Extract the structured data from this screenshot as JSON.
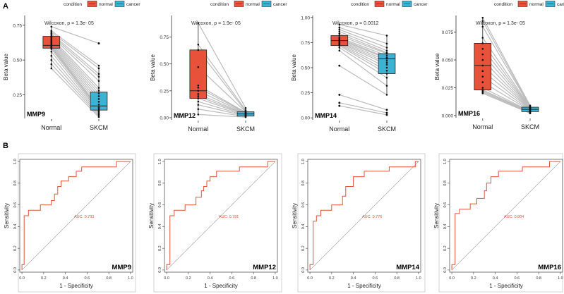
{
  "panel_labels": {
    "a": "A",
    "b": "B"
  },
  "colors": {
    "normal": "#e8513a",
    "cancer": "#3db3d4",
    "line": "#bcbcbc",
    "roc": "#e2553a",
    "diag": "#aaaaaa",
    "axis": "#333333"
  },
  "legend": {
    "title": "condition",
    "items": [
      "normal",
      "cancer"
    ]
  },
  "chart_data": [
    {
      "type": "box",
      "gene": "MMP9",
      "ylabel": "Beta value",
      "categories": [
        "Normal",
        "SKCM"
      ],
      "annotation": "Wilcoxon, p = 1.3e- 05",
      "ylim": [
        0.08,
        0.82
      ],
      "yticks": [
        0.25,
        0.5,
        0.75
      ],
      "tick_labels": [
        "0.25",
        "0.50",
        "0.75"
      ],
      "normal": {
        "q1": 0.585,
        "median": 0.605,
        "q3": 0.67,
        "whisker_low": 0.44,
        "whisker_high": 0.74
      },
      "cancer": {
        "q1": 0.14,
        "median": 0.17,
        "q3": 0.27,
        "whisker_low": 0.09,
        "whisker_high": 0.46,
        "outliers": [
          0.62
        ]
      },
      "pairs": [
        [
          0.74,
          0.62
        ],
        [
          0.71,
          0.46
        ],
        [
          0.7,
          0.44
        ],
        [
          0.69,
          0.4
        ],
        [
          0.68,
          0.38
        ],
        [
          0.67,
          0.35
        ],
        [
          0.66,
          0.3
        ],
        [
          0.65,
          0.28
        ],
        [
          0.64,
          0.26
        ],
        [
          0.63,
          0.24
        ],
        [
          0.62,
          0.22
        ],
        [
          0.61,
          0.2
        ],
        [
          0.6,
          0.18
        ],
        [
          0.595,
          0.16
        ],
        [
          0.59,
          0.15
        ],
        [
          0.58,
          0.14
        ],
        [
          0.56,
          0.13
        ],
        [
          0.53,
          0.12
        ],
        [
          0.5,
          0.11
        ],
        [
          0.47,
          0.1
        ],
        [
          0.44,
          0.09
        ]
      ]
    },
    {
      "type": "box",
      "gene": "MMP12",
      "ylabel": "Beta value",
      "categories": [
        "Normal",
        "SKCM"
      ],
      "annotation": "Wilcoxon, p = 1.9e- 05",
      "ylim": [
        -0.02,
        0.95
      ],
      "yticks": [
        0.0,
        0.25,
        0.5,
        0.75
      ],
      "tick_labels": [
        "0.00",
        "0.25",
        "0.50",
        "0.75"
      ],
      "normal": {
        "q1": 0.18,
        "median": 0.25,
        "q3": 0.63,
        "whisker_low": 0.03,
        "whisker_high": 0.88
      },
      "cancer": {
        "q1": 0.015,
        "median": 0.035,
        "q3": 0.055,
        "whisker_low": 0.005,
        "whisker_high": 0.09
      },
      "pairs": [
        [
          0.88,
          0.09
        ],
        [
          0.68,
          0.07
        ],
        [
          0.63,
          0.06
        ],
        [
          0.47,
          0.055
        ],
        [
          0.3,
          0.05
        ],
        [
          0.28,
          0.045
        ],
        [
          0.25,
          0.04
        ],
        [
          0.22,
          0.035
        ],
        [
          0.2,
          0.03
        ],
        [
          0.18,
          0.025
        ],
        [
          0.15,
          0.02
        ],
        [
          0.12,
          0.015
        ],
        [
          0.08,
          0.01
        ],
        [
          0.03,
          0.005
        ]
      ]
    },
    {
      "type": "box",
      "gene": "MMP14",
      "ylabel": "Beta value",
      "categories": [
        "Normal",
        "SKCM"
      ],
      "annotation": "Wilcoxon, p = 0.0012",
      "ylim": [
        -0.02,
        1.02
      ],
      "yticks": [
        0.0,
        0.25,
        0.5,
        0.75,
        1.0
      ],
      "tick_labels": [
        "0.00",
        "0.25",
        "0.50",
        "0.75",
        "1.00"
      ],
      "normal": {
        "q1": 0.72,
        "median": 0.77,
        "q3": 0.82,
        "whisker_low": 0.67,
        "whisker_high": 0.93,
        "outliers": [
          0.52,
          0.23,
          0.15,
          0.12
        ]
      },
      "cancer": {
        "q1": 0.44,
        "median": 0.59,
        "q3": 0.64,
        "whisker_low": 0.23,
        "whisker_high": 0.82,
        "outliers": [
          0.08,
          0.05,
          0.03
        ]
      },
      "pairs": [
        [
          0.93,
          0.82
        ],
        [
          0.9,
          0.74
        ],
        [
          0.88,
          0.7
        ],
        [
          0.86,
          0.67
        ],
        [
          0.84,
          0.65
        ],
        [
          0.82,
          0.64
        ],
        [
          0.8,
          0.62
        ],
        [
          0.79,
          0.6
        ],
        [
          0.78,
          0.59
        ],
        [
          0.77,
          0.57
        ],
        [
          0.76,
          0.55
        ],
        [
          0.75,
          0.53
        ],
        [
          0.74,
          0.5
        ],
        [
          0.73,
          0.47
        ],
        [
          0.72,
          0.44
        ],
        [
          0.7,
          0.4
        ],
        [
          0.67,
          0.32
        ],
        [
          0.52,
          0.23
        ],
        [
          0.23,
          0.08
        ],
        [
          0.15,
          0.05
        ],
        [
          0.12,
          0.03
        ]
      ]
    },
    {
      "type": "box",
      "gene": "MMP16",
      "ylabel": "Beta value",
      "categories": [
        "Normal",
        "SKCM"
      ],
      "annotation": "Wilcoxon, p = 1.3e- 05",
      "ylim": [
        -0.002,
        0.09
      ],
      "yticks": [
        0.0,
        0.025,
        0.05,
        0.075
      ],
      "tick_labels": [
        "0.000",
        "0.025",
        "0.050",
        "0.075"
      ],
      "normal": {
        "q1": 0.023,
        "median": 0.045,
        "q3": 0.065,
        "whisker_low": 0.02,
        "whisker_high": 0.088
      },
      "cancer": {
        "q1": 0.0035,
        "median": 0.0055,
        "q3": 0.0075,
        "whisker_low": 0.002,
        "whisker_high": 0.009
      },
      "pairs": [
        [
          0.088,
          0.009
        ],
        [
          0.085,
          0.008
        ],
        [
          0.08,
          0.0078
        ],
        [
          0.07,
          0.0075
        ],
        [
          0.065,
          0.007
        ],
        [
          0.06,
          0.0068
        ],
        [
          0.055,
          0.0065
        ],
        [
          0.05,
          0.006
        ],
        [
          0.045,
          0.0058
        ],
        [
          0.04,
          0.0055
        ],
        [
          0.035,
          0.005
        ],
        [
          0.03,
          0.0045
        ],
        [
          0.025,
          0.004
        ],
        [
          0.023,
          0.0035
        ],
        [
          0.022,
          0.003
        ],
        [
          0.021,
          0.0025
        ],
        [
          0.02,
          0.002
        ]
      ]
    },
    {
      "type": "line",
      "subtype": "roc",
      "gene": "MMP9",
      "auc_label": "AUC: 0.793",
      "xlabel": "1 - Specificity",
      "ylabel": "Sensitivity",
      "xlim": [
        -0.02,
        1.02
      ],
      "ylim": [
        -0.02,
        1.02
      ],
      "ticks": [
        0,
        0.2,
        0.4,
        0.6,
        0.8,
        1.0
      ],
      "tick_labels": [
        "0.0",
        "0.2",
        "0.4",
        "0.6",
        "0.8",
        "1.0"
      ],
      "points": [
        [
          0,
          0
        ],
        [
          0,
          0.05
        ],
        [
          0.02,
          0.05
        ],
        [
          0.02,
          0.5
        ],
        [
          0.06,
          0.5
        ],
        [
          0.06,
          0.55
        ],
        [
          0.17,
          0.55
        ],
        [
          0.17,
          0.6
        ],
        [
          0.27,
          0.6
        ],
        [
          0.27,
          0.64
        ],
        [
          0.3,
          0.64
        ],
        [
          0.3,
          0.7
        ],
        [
          0.33,
          0.7
        ],
        [
          0.33,
          0.77
        ],
        [
          0.36,
          0.77
        ],
        [
          0.36,
          0.82
        ],
        [
          0.43,
          0.82
        ],
        [
          0.43,
          0.86
        ],
        [
          0.5,
          0.86
        ],
        [
          0.5,
          0.91
        ],
        [
          0.55,
          0.91
        ],
        [
          0.55,
          0.95
        ],
        [
          0.87,
          0.95
        ],
        [
          0.87,
          1.0
        ],
        [
          1.0,
          1.0
        ]
      ]
    },
    {
      "type": "line",
      "subtype": "roc",
      "gene": "MMP12",
      "auc_label": "AUC: 0.781",
      "xlabel": "1 - Specificity",
      "ylabel": "Sensitivity",
      "xlim": [
        -0.02,
        1.02
      ],
      "ylim": [
        -0.02,
        1.02
      ],
      "ticks": [
        0,
        0.2,
        0.4,
        0.6,
        0.8,
        1.0
      ],
      "tick_labels": [
        "0.0",
        "0.2",
        "0.4",
        "0.6",
        "0.8",
        "1.0"
      ],
      "points": [
        [
          0,
          0
        ],
        [
          0,
          0.05
        ],
        [
          0.03,
          0.05
        ],
        [
          0.03,
          0.5
        ],
        [
          0.07,
          0.5
        ],
        [
          0.07,
          0.55
        ],
        [
          0.17,
          0.55
        ],
        [
          0.17,
          0.6
        ],
        [
          0.27,
          0.6
        ],
        [
          0.27,
          0.67
        ],
        [
          0.32,
          0.67
        ],
        [
          0.32,
          0.73
        ],
        [
          0.34,
          0.73
        ],
        [
          0.34,
          0.77
        ],
        [
          0.37,
          0.77
        ],
        [
          0.37,
          0.82
        ],
        [
          0.4,
          0.82
        ],
        [
          0.4,
          0.86
        ],
        [
          0.46,
          0.86
        ],
        [
          0.46,
          0.91
        ],
        [
          0.67,
          0.91
        ],
        [
          0.67,
          0.95
        ],
        [
          0.93,
          0.95
        ],
        [
          0.93,
          1.0
        ],
        [
          1.0,
          1.0
        ]
      ]
    },
    {
      "type": "line",
      "subtype": "roc",
      "gene": "MMP14",
      "auc_label": "AUC: 0.776",
      "xlabel": "1 - Specificity",
      "ylabel": "Sensitivity",
      "xlim": [
        -0.02,
        1.02
      ],
      "ylim": [
        -0.02,
        1.02
      ],
      "ticks": [
        0,
        0.2,
        0.4,
        0.6,
        0.8,
        1.0
      ],
      "tick_labels": [
        "0.0",
        "0.2",
        "0.4",
        "0.6",
        "0.8",
        "1.0"
      ],
      "points": [
        [
          0,
          0
        ],
        [
          0,
          0.05
        ],
        [
          0.03,
          0.05
        ],
        [
          0.03,
          0.45
        ],
        [
          0.06,
          0.45
        ],
        [
          0.06,
          0.5
        ],
        [
          0.1,
          0.5
        ],
        [
          0.1,
          0.55
        ],
        [
          0.2,
          0.55
        ],
        [
          0.2,
          0.6
        ],
        [
          0.3,
          0.6
        ],
        [
          0.3,
          0.68
        ],
        [
          0.33,
          0.68
        ],
        [
          0.33,
          0.77
        ],
        [
          0.4,
          0.77
        ],
        [
          0.4,
          0.86
        ],
        [
          0.5,
          0.86
        ],
        [
          0.5,
          0.91
        ],
        [
          0.73,
          0.91
        ],
        [
          0.73,
          0.95
        ],
        [
          0.97,
          0.95
        ],
        [
          0.97,
          1.0
        ],
        [
          1.0,
          1.0
        ]
      ]
    },
    {
      "type": "line",
      "subtype": "roc",
      "gene": "MMP16",
      "auc_label": "AUC: 0.804",
      "xlabel": "1 - Specificity",
      "ylabel": "Sensitivity",
      "xlim": [
        -0.02,
        1.02
      ],
      "ylim": [
        -0.02,
        1.02
      ],
      "ticks": [
        0,
        0.2,
        0.4,
        0.6,
        0.8,
        1.0
      ],
      "tick_labels": [
        "0.0",
        "0.2",
        "0.4",
        "0.6",
        "0.8",
        "1.0"
      ],
      "points": [
        [
          0,
          0
        ],
        [
          0,
          0.05
        ],
        [
          0.03,
          0.05
        ],
        [
          0.03,
          0.52
        ],
        [
          0.07,
          0.52
        ],
        [
          0.07,
          0.56
        ],
        [
          0.17,
          0.56
        ],
        [
          0.17,
          0.61
        ],
        [
          0.23,
          0.61
        ],
        [
          0.23,
          0.66
        ],
        [
          0.3,
          0.66
        ],
        [
          0.3,
          0.73
        ],
        [
          0.32,
          0.73
        ],
        [
          0.32,
          0.8
        ],
        [
          0.36,
          0.8
        ],
        [
          0.36,
          0.86
        ],
        [
          0.43,
          0.86
        ],
        [
          0.43,
          0.91
        ],
        [
          0.65,
          0.91
        ],
        [
          0.65,
          0.95
        ],
        [
          0.9,
          0.95
        ],
        [
          0.9,
          1.0
        ],
        [
          1.0,
          1.0
        ]
      ]
    }
  ]
}
